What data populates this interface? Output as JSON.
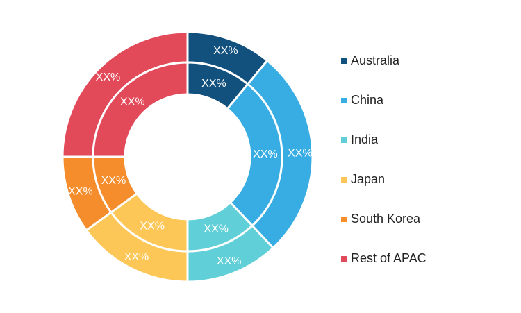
{
  "chart_data": {
    "type": "donut",
    "categories": [
      "Australia",
      "China",
      "India",
      "Japan",
      "South Korea",
      "Rest of APAC"
    ],
    "colors": [
      "#12507d",
      "#38ade3",
      "#61cfd8",
      "#fcc757",
      "#f58d2c",
      "#e24a5a"
    ],
    "series": [
      {
        "ring": "outer",
        "values": [
          11,
          27,
          12,
          15,
          10,
          25
        ],
        "labels": [
          "XX%",
          "XX%",
          "XX%",
          "XX%",
          "XX%",
          "XX%"
        ]
      },
      {
        "ring": "inner",
        "values": [
          11,
          27,
          12,
          15,
          10,
          25
        ],
        "labels": [
          "XX%",
          "XX%",
          "XX%",
          "XX%",
          "XX%",
          "XX%"
        ]
      }
    ],
    "legend": {
      "position": "right",
      "items": [
        "Australia",
        "China",
        "India",
        "Japan",
        "South Korea",
        "Rest of APAC"
      ]
    }
  }
}
